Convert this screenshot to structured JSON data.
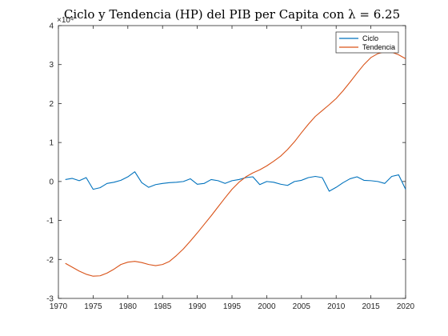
{
  "chart_data": {
    "type": "line",
    "title": "Ciclo y Tendencia (HP) del PIB per Capita con λ = 6.25",
    "xlabel": "",
    "ylabel": "",
    "y_exponent_label": "×10⁴",
    "xlim": [
      1970,
      2020
    ],
    "ylim": [
      -3,
      4
    ],
    "y_scale_note": "values shown in units of 10^4",
    "xticks": [
      1970,
      1975,
      1980,
      1985,
      1990,
      1995,
      2000,
      2005,
      2010,
      2015,
      2020
    ],
    "yticks": [
      -3,
      -2,
      -1,
      0,
      1,
      2,
      3,
      4
    ],
    "grid": false,
    "legend_position": "top-right",
    "x": [
      1971,
      1972,
      1973,
      1974,
      1975,
      1976,
      1977,
      1978,
      1979,
      1980,
      1981,
      1982,
      1983,
      1984,
      1985,
      1986,
      1987,
      1988,
      1989,
      1990,
      1991,
      1992,
      1993,
      1994,
      1995,
      1996,
      1997,
      1998,
      1999,
      2000,
      2001,
      2002,
      2003,
      2004,
      2005,
      2006,
      2007,
      2008,
      2009,
      2010,
      2011,
      2012,
      2013,
      2014,
      2015,
      2016,
      2017,
      2018,
      2019,
      2020
    ],
    "series": [
      {
        "name": "Ciclo",
        "color": "#0072BD",
        "values": [
          0.05,
          0.08,
          0.02,
          0.1,
          -0.2,
          -0.16,
          -0.05,
          -0.02,
          0.03,
          0.12,
          0.25,
          -0.03,
          -0.15,
          -0.08,
          -0.05,
          -0.03,
          -0.02,
          0.0,
          0.07,
          -0.07,
          -0.05,
          0.05,
          0.02,
          -0.05,
          0.02,
          0.05,
          0.1,
          0.12,
          -0.08,
          0.0,
          -0.02,
          -0.07,
          -0.1,
          0.0,
          0.03,
          0.1,
          0.13,
          0.1,
          -0.25,
          -0.15,
          -0.03,
          0.07,
          0.12,
          0.03,
          0.02,
          0.0,
          -0.05,
          0.13,
          0.17,
          -0.2
        ]
      },
      {
        "name": "Tendencia",
        "color": "#D95319",
        "values": [
          -2.1,
          -2.2,
          -2.3,
          -2.38,
          -2.43,
          -2.42,
          -2.35,
          -2.25,
          -2.13,
          -2.07,
          -2.05,
          -2.08,
          -2.13,
          -2.16,
          -2.13,
          -2.05,
          -1.9,
          -1.73,
          -1.53,
          -1.32,
          -1.1,
          -0.88,
          -0.65,
          -0.42,
          -0.2,
          -0.02,
          0.12,
          0.22,
          0.3,
          0.4,
          0.52,
          0.65,
          0.82,
          1.02,
          1.25,
          1.47,
          1.67,
          1.82,
          1.97,
          2.13,
          2.33,
          2.55,
          2.78,
          3.0,
          3.18,
          3.28,
          3.33,
          3.32,
          3.25,
          3.15
        ]
      }
    ]
  }
}
